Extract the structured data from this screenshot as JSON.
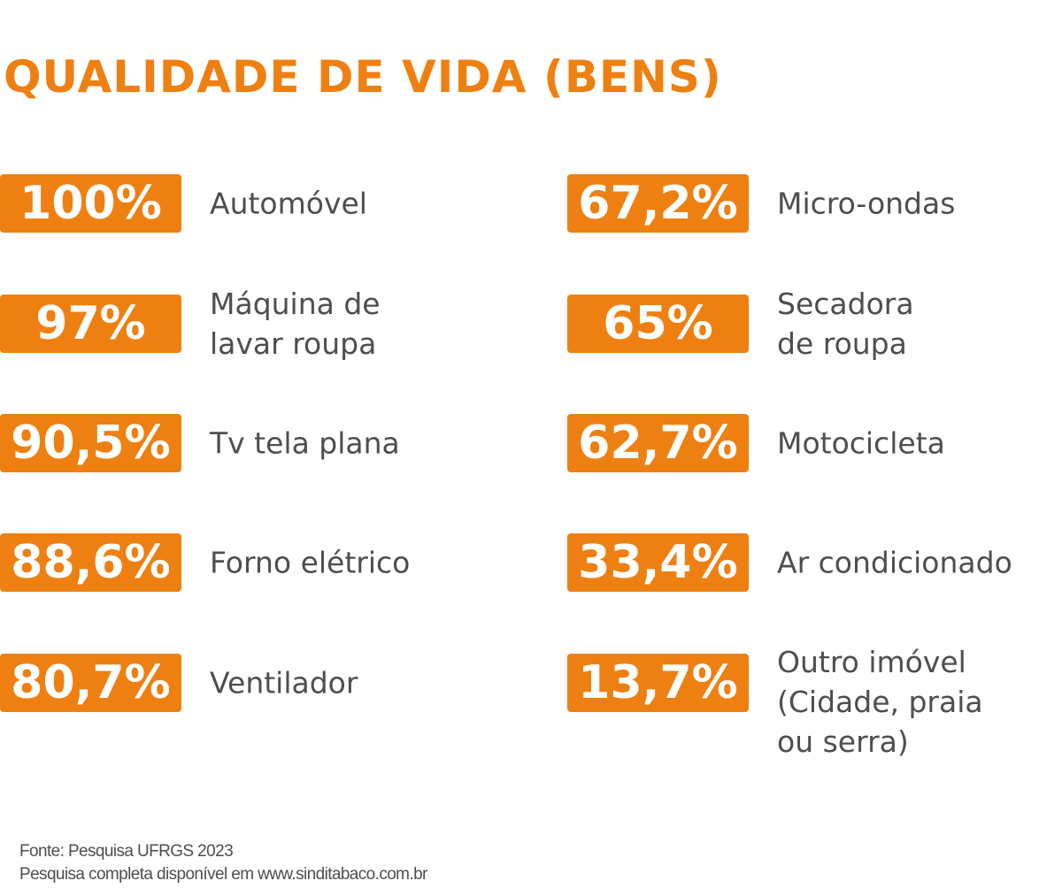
{
  "title": "QUALIDADE DE VIDA (BENS)",
  "accent_color": "#EE8012",
  "text_color": "#4E4E4E",
  "items_left": [
    {
      "value": "100%",
      "label": "Automóvel"
    },
    {
      "value": "97%",
      "label": "Máquina de\nlavar roupa"
    },
    {
      "value": "90,5%",
      "label": "Tv tela plana"
    },
    {
      "value": "88,6%",
      "label": "Forno elétrico"
    },
    {
      "value": "80,7%",
      "label": "Ventilador"
    }
  ],
  "items_right": [
    {
      "value": "67,2%",
      "label": "Micro-ondas"
    },
    {
      "value": "65%",
      "label": "Secadora\nde roupa"
    },
    {
      "value": "62,7%",
      "label": "Motocicleta"
    },
    {
      "value": "33,4%",
      "label": "Ar condicionado"
    },
    {
      "value": "13,7%",
      "label": "Outro imóvel\n(Cidade, praia\nou serra)"
    }
  ],
  "footer": {
    "source": "Fonte: Pesquisa UFRGS 2023",
    "note": "Pesquisa completa disponível em www.sinditabaco.com.br"
  }
}
